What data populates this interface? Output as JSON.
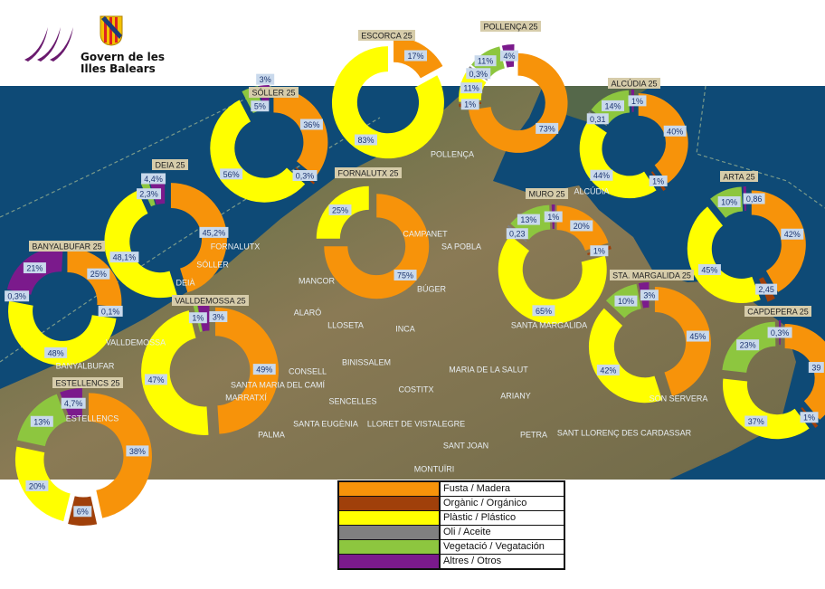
{
  "header": {
    "logo_line1": "Govern de les",
    "logo_line2": "Illes Balears",
    "logo_icon": "govern-illes-balears-logo",
    "shield_icon": "coat-of-arms"
  },
  "colors": {
    "fusta": "#f7930a",
    "organic": "#a0400a",
    "plastic": "#ffff00",
    "oli": "#808080",
    "vegetacio": "#8dc63f",
    "altres": "#7b1a8c",
    "sea": "#0e4a76",
    "title_bg": "#d6ccaa",
    "label_bg": "#c9d9ec"
  },
  "map_labels": [
    "FORNALUTX",
    "SÓLLER",
    "DEIÀ",
    "VALLDEMOSSA",
    "BANYALBUFAR",
    "ESTELLENCS",
    "POLLENÇA",
    "ALCÚDIA",
    "SA POBLA",
    "BÚGER",
    "MANCOR",
    "ALARÓ",
    "LLOSETA",
    "INCA",
    "BINISSALEM",
    "CONSELL",
    "SANTA MARIA DEL CAMÍ",
    "SENCELLES",
    "SANTA EUGÈNIA",
    "LLORET DE VISTALEGRE",
    "COSTITX",
    "MARIA DE LA SALUT",
    "ARIANY",
    "PETRA",
    "SANT JOAN",
    "SANTA MARGALIDA",
    "SANT LLORENÇ DES CARDASSAR",
    "SON SERVERA",
    "MARRATXÍ",
    "PALMA",
    "MONTUÏRI",
    "CAMPANET"
  ],
  "chart_data": {
    "type": "pie",
    "variant": "exploded donut per municipality on map",
    "categories": [
      "Fusta / Madera",
      "Orgànic / Orgánico",
      "Plàstic / Plástico",
      "Oli / Aceite",
      "Vegetació / Vegatación",
      "Altres / Otros"
    ],
    "legend_placement": "bottom-center",
    "charts": [
      {
        "id": "soller",
        "title": "SÓLLER  25",
        "slices": [
          {
            "cat": "fusta",
            "value": 36,
            "label": "36%"
          },
          {
            "cat": "organic",
            "value": 0.3,
            "label": "0,3%"
          },
          {
            "cat": "plastic",
            "value": 56,
            "label": "56%"
          },
          {
            "cat": "vegetacio",
            "value": 5,
            "label": "5%"
          },
          {
            "cat": "altres",
            "value": 3,
            "label": "3%"
          }
        ]
      },
      {
        "id": "deia",
        "title": "DEIA  25",
        "slices": [
          {
            "cat": "fusta",
            "value": 45.2,
            "label": "45,2%"
          },
          {
            "cat": "plastic",
            "value": 48.1,
            "label": "48,1%"
          },
          {
            "cat": "vegetacio",
            "value": 2.3,
            "label": "2,3%"
          },
          {
            "cat": "altres",
            "value": 4.4,
            "label": "4,4%"
          }
        ]
      },
      {
        "id": "banyalbufar",
        "title": "BANYALBUFAR  25",
        "slices": [
          {
            "cat": "fusta",
            "value": 25,
            "label": "25%"
          },
          {
            "cat": "organic",
            "value": 0.1,
            "label": "0,1%"
          },
          {
            "cat": "plastic",
            "value": 48,
            "label": "48%"
          },
          {
            "cat": "vegetacio",
            "value": 0.3,
            "label": "0,3%"
          },
          {
            "cat": "altres",
            "value": 21,
            "label": "21%"
          }
        ]
      },
      {
        "id": "valldemossa",
        "title": "VALLDEMOSSA  25",
        "slices": [
          {
            "cat": "fusta",
            "value": 49,
            "label": "49%"
          },
          {
            "cat": "plastic",
            "value": 47,
            "label": "47%"
          },
          {
            "cat": "vegetacio",
            "value": 1,
            "label": "1%"
          },
          {
            "cat": "altres",
            "value": 3,
            "label": "3%"
          }
        ]
      },
      {
        "id": "estellencs",
        "title": "ESTELLENCS  25",
        "slices": [
          {
            "cat": "fusta",
            "value": 38,
            "label": "38%"
          },
          {
            "cat": "organic",
            "value": 6,
            "label": "6%"
          },
          {
            "cat": "plastic",
            "value": 20,
            "label": "20%"
          },
          {
            "cat": "vegetacio",
            "value": 13,
            "label": "13%"
          },
          {
            "cat": "altres",
            "value": 4.7,
            "label": "4,7%"
          }
        ]
      },
      {
        "id": "escorca",
        "title": "ESCORCA  25",
        "slices": [
          {
            "cat": "fusta",
            "value": 17,
            "label": "17%"
          },
          {
            "cat": "plastic",
            "value": 83,
            "label": "83%"
          }
        ]
      },
      {
        "id": "fornalutx",
        "title": "FORNALUTX   25",
        "slices": [
          {
            "cat": "fusta",
            "value": 75,
            "label": "75%"
          },
          {
            "cat": "plastic",
            "value": 25,
            "label": "25%"
          }
        ]
      },
      {
        "id": "pollenca",
        "title": "POLLENÇA  25",
        "slices": [
          {
            "cat": "fusta",
            "value": 73,
            "label": "73%"
          },
          {
            "cat": "organic",
            "value": 1,
            "label": "1%"
          },
          {
            "cat": "plastic",
            "value": 11,
            "label": "11%"
          },
          {
            "cat": "oli",
            "value": 0.3,
            "label": "0,3%"
          },
          {
            "cat": "vegetacio",
            "value": 11,
            "label": "11%"
          },
          {
            "cat": "altres",
            "value": 4,
            "label": "4%"
          }
        ]
      },
      {
        "id": "alcudia",
        "title": "ALCÚDIA  25",
        "slices": [
          {
            "cat": "fusta",
            "value": 40,
            "label": "40%"
          },
          {
            "cat": "organic",
            "value": 1,
            "label": "1%"
          },
          {
            "cat": "plastic",
            "value": 44,
            "label": "44%"
          },
          {
            "cat": "oli",
            "value": 0.31,
            "label": "0,31"
          },
          {
            "cat": "vegetacio",
            "value": 14,
            "label": "14%"
          },
          {
            "cat": "altres",
            "value": 1,
            "label": "1%"
          }
        ]
      },
      {
        "id": "muro",
        "title": "MURO  25",
        "slices": [
          {
            "cat": "fusta",
            "value": 20,
            "label": "20%"
          },
          {
            "cat": "organic",
            "value": 1,
            "label": "1%"
          },
          {
            "cat": "plastic",
            "value": 65,
            "label": "65%"
          },
          {
            "cat": "oli",
            "value": 0.23,
            "label": "0,23"
          },
          {
            "cat": "vegetacio",
            "value": 13,
            "label": "13%"
          },
          {
            "cat": "altres",
            "value": 1,
            "label": "1%"
          }
        ]
      },
      {
        "id": "arta",
        "title": "ARTA  25",
        "slices": [
          {
            "cat": "fusta",
            "value": 42,
            "label": "42%"
          },
          {
            "cat": "organic",
            "value": 2.45,
            "label": "2,45"
          },
          {
            "cat": "plastic",
            "value": 45,
            "label": "45%"
          },
          {
            "cat": "vegetacio",
            "value": 10,
            "label": "10%"
          },
          {
            "cat": "altres",
            "value": 0.86,
            "label": "0,86"
          }
        ]
      },
      {
        "id": "sta_margalida",
        "title": "STA. MARGALIDA  25",
        "slices": [
          {
            "cat": "fusta",
            "value": 45,
            "label": "45%"
          },
          {
            "cat": "plastic",
            "value": 42,
            "label": "42%"
          },
          {
            "cat": "vegetacio",
            "value": 10,
            "label": "10%"
          },
          {
            "cat": "altres",
            "value": 3,
            "label": "3%"
          }
        ]
      },
      {
        "id": "capdepera",
        "title": "CAPDEPERA  25",
        "slices": [
          {
            "cat": "fusta",
            "value": 39,
            "label": "39"
          },
          {
            "cat": "organic",
            "value": 1,
            "label": "1%"
          },
          {
            "cat": "plastic",
            "value": 37,
            "label": "37%"
          },
          {
            "cat": "vegetacio",
            "value": 23,
            "label": "23%"
          },
          {
            "cat": "altres",
            "value": 0.3,
            "label": "0,3%"
          }
        ]
      }
    ]
  },
  "legend": [
    {
      "cat": "fusta",
      "label": "Fusta / Madera"
    },
    {
      "cat": "organic",
      "label": "Orgànic / Orgánico"
    },
    {
      "cat": "plastic",
      "label": "Plàstic / Plástico"
    },
    {
      "cat": "oli",
      "label": "Oli / Aceite"
    },
    {
      "cat": "vegetacio",
      "label": "Vegetació / Vegatación"
    },
    {
      "cat": "altres",
      "label": "Altres / Otros"
    }
  ]
}
